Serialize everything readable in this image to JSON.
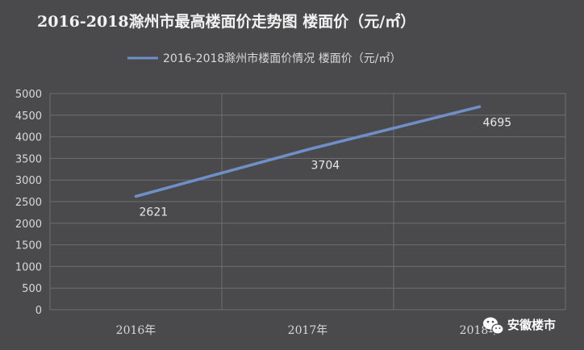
{
  "chart_data": {
    "type": "line",
    "title": "2016-2018滁州市最高楼面价走势图 楼面价（元/㎡）",
    "categories": [
      "2016年",
      "2017年",
      "2018年"
    ],
    "series": [
      {
        "name": "2016-2018滁州市楼面价情况 楼面价（元/㎡）",
        "values": [
          2621,
          3704,
          4695
        ],
        "data_labels": [
          "2621",
          "3704",
          "4695"
        ],
        "color": "#6f8fc8"
      }
    ],
    "ylim": [
      0,
      5000
    ],
    "yticks": [
      0,
      500,
      1000,
      1500,
      2000,
      2500,
      3000,
      3500,
      4000,
      4500,
      5000
    ],
    "xlabel": "",
    "ylabel": "",
    "grid": true,
    "legend": "top"
  },
  "watermark": {
    "text": "安徽楼市",
    "icon": "wechat-icon"
  },
  "colors": {
    "background": "#4a4a4c",
    "grid": "#6f6f72",
    "text": "#d9d9d9",
    "series": "#6f8fc8"
  }
}
